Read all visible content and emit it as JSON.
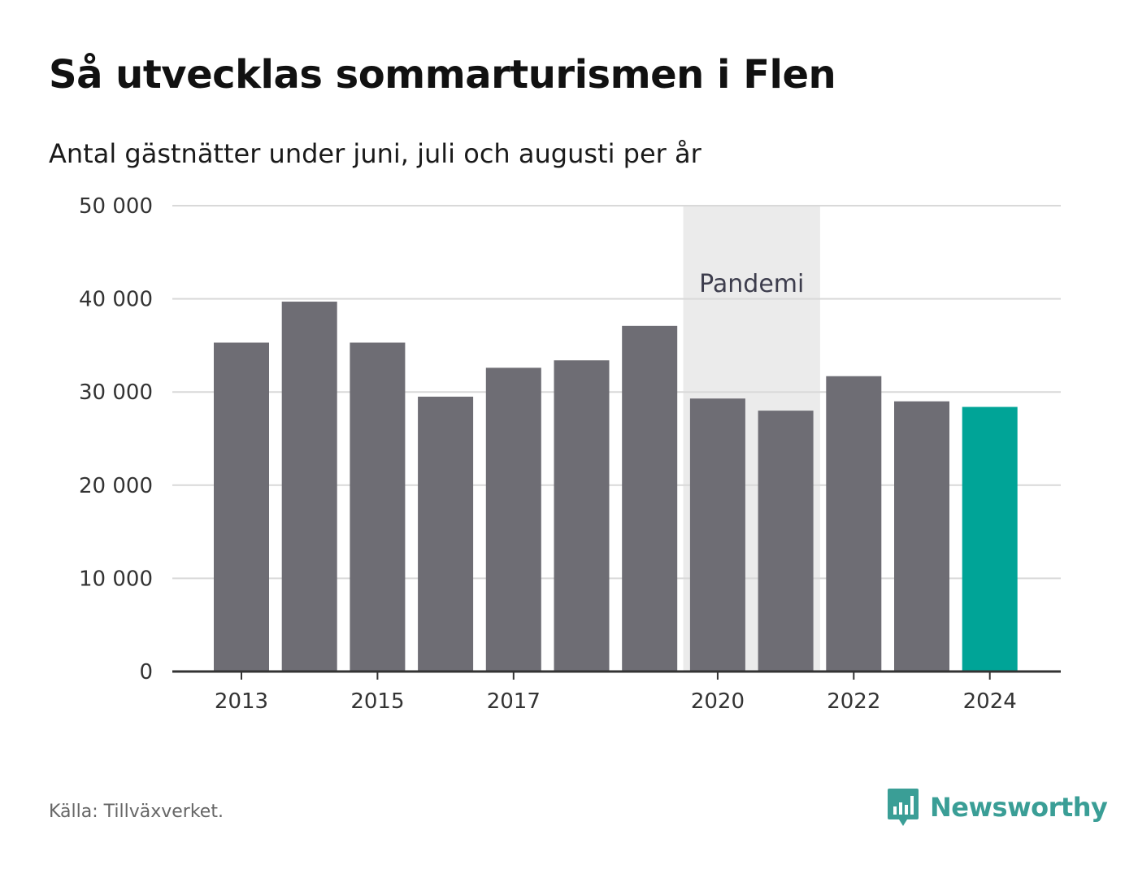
{
  "title": "Så utvecklas sommarturismen i Flen",
  "subtitle": "Antal gästnätter under juni, juli och augusti per år",
  "source": "Källa: Tillväxverket.",
  "logo_text": "Newsworthy",
  "colors": {
    "bar": "#6e6d74",
    "highlight": "#00a497",
    "band": "#ebebeb",
    "grid": "#d9d9d9",
    "axis": "#333333",
    "logo": "#3a9e96"
  },
  "chart_data": {
    "type": "bar",
    "title": "Så utvecklas sommarturismen i Flen",
    "subtitle": "Antal gästnätter under juni, juli och augusti per år",
    "categories": [
      "2013",
      "2014",
      "2015",
      "2016",
      "2017",
      "2018",
      "2019",
      "2020",
      "2021",
      "2022",
      "2023",
      "2024"
    ],
    "values": [
      35300,
      39700,
      35300,
      29500,
      32600,
      33400,
      37100,
      29300,
      28000,
      31700,
      29000,
      28400
    ],
    "highlight_index": 11,
    "x_tick_labels": [
      "2013",
      "2015",
      "2017",
      "2020",
      "2022",
      "2024"
    ],
    "ylim": [
      0,
      50000
    ],
    "y_ticks": [
      0,
      10000,
      20000,
      30000,
      40000,
      50000
    ],
    "y_tick_labels": [
      "0",
      "10 000",
      "20 000",
      "30 000",
      "40 000",
      "50 000"
    ],
    "grid": true,
    "annotation": {
      "label": "Pandemi",
      "from": "2020",
      "to": "2021"
    },
    "xlabel": "",
    "ylabel": ""
  }
}
